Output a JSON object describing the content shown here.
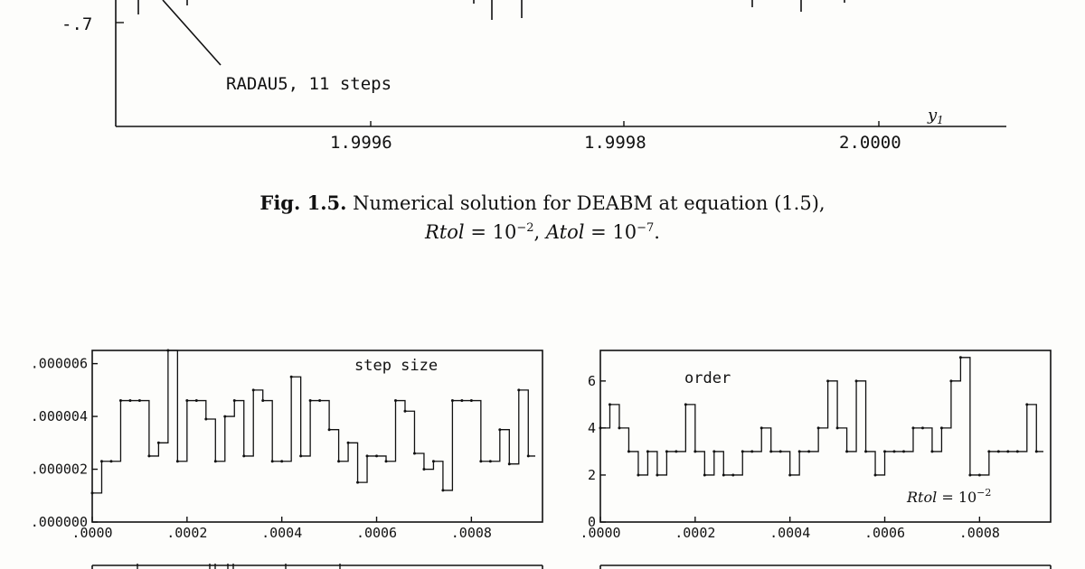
{
  "top_figure": {
    "ytick": "-.7",
    "xticks": [
      "1.9996",
      "1.9998",
      "2.0000"
    ],
    "xlabel_var": "y",
    "xlabel_sub": "1",
    "annotation": "RADAU5, 11 steps"
  },
  "caption": {
    "label": "Fig. 1.5.",
    "text": "Numerical solution for DEABM at equation (1.5),",
    "rtol_name": "Rtol",
    "rtol_value": " = 10",
    "rtol_exp": "−2",
    "sep": ", ",
    "atol_name": "Atol",
    "atol_value": " = 10",
    "atol_exp": "−7",
    "end": "."
  },
  "chart_data": [
    {
      "type": "line",
      "title": "step size",
      "x_ticks": [
        ".0000",
        ".0002",
        ".0004",
        ".0006",
        ".0008"
      ],
      "y_ticks": [
        ".000000",
        ".000002",
        ".000004",
        ".000006"
      ],
      "xlim": [
        0,
        0.00095
      ],
      "ylim": [
        0,
        6.5e-06
      ],
      "x": [
        0,
        2e-05,
        4e-05,
        6e-05,
        8e-05,
        0.0001,
        0.00012,
        0.00014,
        0.00016,
        0.00018,
        0.0002,
        0.00022,
        0.00024,
        0.00026,
        0.00028,
        0.0003,
        0.00032,
        0.00034,
        0.00036,
        0.00038,
        0.0004,
        0.00042,
        0.00044,
        0.00046,
        0.00048,
        0.0005,
        0.00052,
        0.00054,
        0.00056,
        0.00058,
        0.0006,
        0.00062,
        0.00064,
        0.00066,
        0.00068,
        0.0007,
        0.00072,
        0.00074,
        0.00076,
        0.00078,
        0.0008,
        0.00082,
        0.00084,
        0.00086,
        0.00088,
        0.0009,
        0.00092
      ],
      "y": [
        1.1e-06,
        2.3e-06,
        2.3e-06,
        4.6e-06,
        4.6e-06,
        4.6e-06,
        2.5e-06,
        3e-06,
        6.5e-06,
        2.3e-06,
        4.6e-06,
        4.6e-06,
        3.9e-06,
        2.3e-06,
        4e-06,
        4.6e-06,
        2.5e-06,
        5e-06,
        4.6e-06,
        2.3e-06,
        2.3e-06,
        5.5e-06,
        2.5e-06,
        4.6e-06,
        4.6e-06,
        3.5e-06,
        2.3e-06,
        3e-06,
        1.5e-06,
        2.5e-06,
        2.5e-06,
        2.3e-06,
        4.6e-06,
        4.2e-06,
        2.6e-06,
        2e-06,
        2.3e-06,
        1.2e-06,
        4.6e-06,
        4.6e-06,
        4.6e-06,
        2.3e-06,
        2.3e-06,
        3.5e-06,
        2.2e-06,
        5e-06,
        2.5e-06
      ]
    },
    {
      "type": "line",
      "title": "order",
      "annotation_name": "Rtol",
      "annotation_value": " = 10",
      "annotation_exp": "−2",
      "x_ticks": [
        ".0000",
        ".0002",
        ".0004",
        ".0006",
        ".0008"
      ],
      "y_ticks": [
        "0",
        "2",
        "4",
        "6"
      ],
      "xlim": [
        0,
        0.00095
      ],
      "ylim": [
        0,
        7.3
      ],
      "x": [
        0,
        2e-05,
        4e-05,
        6e-05,
        8e-05,
        0.0001,
        0.00012,
        0.00014,
        0.00016,
        0.00018,
        0.0002,
        0.00022,
        0.00024,
        0.00026,
        0.00028,
        0.0003,
        0.00032,
        0.00034,
        0.00036,
        0.00038,
        0.0004,
        0.00042,
        0.00044,
        0.00046,
        0.00048,
        0.0005,
        0.00052,
        0.00054,
        0.00056,
        0.00058,
        0.0006,
        0.00062,
        0.00064,
        0.00066,
        0.00068,
        0.0007,
        0.00072,
        0.00074,
        0.00076,
        0.00078,
        0.0008,
        0.00082,
        0.00084,
        0.00086,
        0.00088,
        0.0009,
        0.00092
      ],
      "y": [
        4,
        5,
        4,
        3,
        2,
        3,
        2,
        3,
        3,
        5,
        3,
        2,
        3,
        2,
        2,
        3,
        3,
        4,
        3,
        3,
        2,
        3,
        3,
        4,
        6,
        4,
        3,
        6,
        3,
        2,
        3,
        3,
        3,
        4,
        4,
        3,
        4,
        6,
        7,
        2,
        2,
        3,
        3,
        3,
        3,
        5,
        3
      ]
    }
  ]
}
